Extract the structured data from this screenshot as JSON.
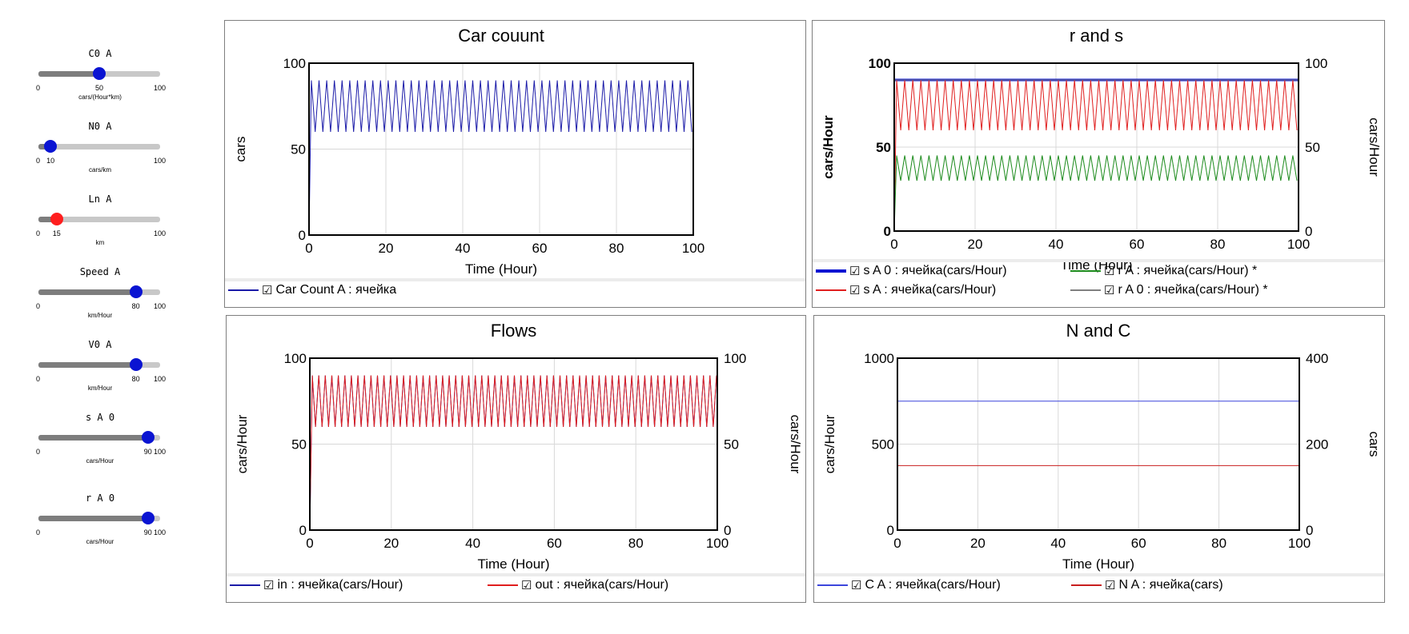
{
  "sliders": [
    {
      "label": "C0 A",
      "min": "0",
      "value": "50",
      "max": "100",
      "unit": "cars/(Hour*km)",
      "level": 0.5,
      "thumb_color": "#0a14d2"
    },
    {
      "label": "N0 A",
      "min": "0",
      "value": "10",
      "max": "100",
      "unit": "cars/km",
      "level": 0.1,
      "thumb_color": "#0a14d2"
    },
    {
      "label": "Ln A",
      "min": "0",
      "value": "15",
      "max": "100",
      "unit": "km",
      "level": 0.15,
      "thumb_color": "#ff1e1e"
    },
    {
      "label": "Speed A",
      "min": "0",
      "value": "80",
      "max": "100",
      "unit": "km/Hour",
      "level": 0.8,
      "thumb_color": "#0a14d2"
    },
    {
      "label": "V0 A",
      "min": "0",
      "value": "80",
      "max": "100",
      "unit": "km/Hour",
      "level": 0.8,
      "thumb_color": "#0a14d2"
    },
    {
      "label": "s A 0",
      "min": "0",
      "value": "90",
      "max": "100",
      "unit": "cars/Hour",
      "level": 0.9,
      "thumb_color": "#0a14d2"
    },
    {
      "label": "r A 0",
      "min": "0",
      "value": "90",
      "max": "100",
      "unit": "cars/Hour",
      "level": 0.9,
      "thumb_color": "#0a14d2"
    }
  ],
  "chart_data": [
    {
      "type": "line",
      "title": "Car couunt",
      "xlabel": "Time (Hour)",
      "ylabel": "cars",
      "xlim": [
        0,
        100
      ],
      "ylim": [
        0,
        100
      ],
      "xticks": [
        "0",
        "20",
        "40",
        "60",
        "80",
        "100"
      ],
      "yticks": [
        "0",
        "50",
        "100"
      ],
      "grid": true,
      "series": [
        {
          "name": "Car Count A : ячейка",
          "legend_prefix": "☑",
          "color": "#1a1aa8",
          "axis": "left",
          "kind": "oscillation",
          "start": 0,
          "low": 60,
          "high": 90,
          "period": 2
        }
      ]
    },
    {
      "type": "line",
      "title": "r and s",
      "xlabel": "Time (Hour)",
      "ylabel": "cars/Hour",
      "ylabel_right": "cars/Hour",
      "xlim": [
        0,
        100
      ],
      "ylim": [
        0,
        100
      ],
      "ylim_right": [
        0,
        100
      ],
      "xticks": [
        "0",
        "20",
        "40",
        "60",
        "80",
        "100"
      ],
      "yticks": [
        "0",
        "50",
        "100"
      ],
      "yticks_right": [
        "0",
        "50",
        "100"
      ],
      "grid": true,
      "series": [
        {
          "name": "s A 0 : ячейка(cars/Hour)",
          "legend_prefix": "☑",
          "color": "#0a14d2",
          "axis": "left",
          "kind": "constant",
          "value": 90,
          "width": 3
        },
        {
          "name": "s A : ячейка(cars/Hour)",
          "legend_prefix": "☑",
          "color": "#e01e1e",
          "axis": "left",
          "kind": "oscillation",
          "start": 0,
          "low": 60,
          "high": 90,
          "period": 2
        },
        {
          "name": "r A : ячейка(cars/Hour) *",
          "legend_prefix": "☑",
          "color": "#1e8c1e",
          "axis": "right",
          "kind": "oscillation",
          "start": 0,
          "low": 30,
          "high": 45,
          "period": 2
        },
        {
          "name": "r A 0 : ячейка(cars/Hour) *",
          "legend_prefix": "☑",
          "color": "#808080",
          "axis": "right",
          "kind": "constant",
          "value": 90,
          "width": 1
        }
      ]
    },
    {
      "type": "line",
      "title": "Flows",
      "xlabel": "Time (Hour)",
      "ylabel": "cars/Hour",
      "ylabel_right": "cars/Hour",
      "xlim": [
        0,
        100
      ],
      "ylim": [
        0,
        100
      ],
      "ylim_right": [
        0,
        100
      ],
      "xticks": [
        "0",
        "20",
        "40",
        "60",
        "80",
        "100"
      ],
      "yticks": [
        "0",
        "50",
        "100"
      ],
      "yticks_right": [
        "0",
        "50",
        "100"
      ],
      "grid": true,
      "series": [
        {
          "name": "in : ячейка(cars/Hour)",
          "legend_prefix": "☑",
          "color": "#1a1aa8",
          "axis": "left",
          "kind": "oscillation",
          "start": 0,
          "low": 60,
          "high": 90,
          "period": 1.6
        },
        {
          "name": "out : ячейка(cars/Hour)",
          "legend_prefix": "☑",
          "color": "#e01e1e",
          "axis": "right",
          "kind": "oscillation",
          "start": 0,
          "low": 60,
          "high": 90,
          "period": 1.6,
          "phase": 0.5
        }
      ]
    },
    {
      "type": "line",
      "title": "N and C",
      "xlabel": "Time (Hour)",
      "ylabel": "cars/Hour",
      "ylabel_right": "cars",
      "xlim": [
        0,
        100
      ],
      "ylim": [
        0,
        1000
      ],
      "ylim_right": [
        0,
        400
      ],
      "xticks": [
        "0",
        "20",
        "40",
        "60",
        "80",
        "100"
      ],
      "yticks": [
        "0",
        "500",
        "1000"
      ],
      "yticks_right": [
        "0",
        "200",
        "400"
      ],
      "grid": true,
      "series": [
        {
          "name": "C A : ячейка(cars/Hour)",
          "legend_prefix": "☑",
          "color": "#3c46dc",
          "axis": "left",
          "kind": "constant",
          "value": 750,
          "width": 1
        },
        {
          "name": "N A : ячейка(cars)",
          "legend_prefix": "☑",
          "color": "#c81e1e",
          "axis": "right",
          "kind": "constant",
          "value": 150,
          "width": 1
        }
      ]
    }
  ]
}
